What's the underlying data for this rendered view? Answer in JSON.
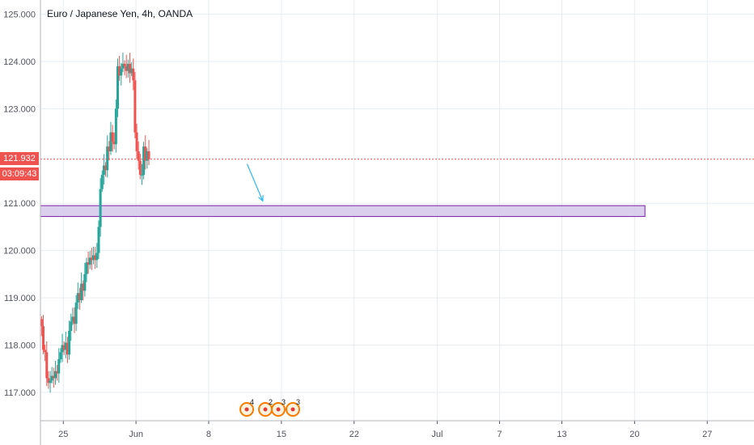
{
  "colors": {
    "up": "#26a69a",
    "down": "#ef5350",
    "grid": "#e6eef2",
    "axis_text": "#50535e",
    "zone_fill": "#d1c4e9",
    "zone_border": "#7b1fa2",
    "arrow": "#29b6f6"
  },
  "header": {
    "title": "Euro / Japanese Yen, 4h, OANDA"
  },
  "price_tag": {
    "price": "121.932",
    "countdown": "03:09:43"
  },
  "events": [
    {
      "label": "4",
      "icon": "flag-icon"
    },
    {
      "label": "2",
      "icon": "flag-icon"
    },
    {
      "label": "3",
      "icon": "flag-icon"
    },
    {
      "label": "3",
      "icon": "flag-icon"
    }
  ],
  "chart_data": {
    "type": "candlestick",
    "title": "Euro / Japanese Yen, 4h, OANDA",
    "y_ticks": [
      "125.000",
      "124.000",
      "123.000",
      "121.000",
      "120.000",
      "119.000",
      "118.000",
      "117.000"
    ],
    "y_range": [
      116.4,
      125.3
    ],
    "x_ticks": [
      {
        "label": "25",
        "day": 0
      },
      {
        "label": "Jun",
        "day": 7
      },
      {
        "label": "8",
        "day": 14
      },
      {
        "label": "15",
        "day": 21
      },
      {
        "label": "22",
        "day": 28
      },
      {
        "label": "Jul",
        "day": 36
      },
      {
        "label": "7",
        "day": 42
      },
      {
        "label": "13",
        "day": 48
      },
      {
        "label": "20",
        "day": 55
      },
      {
        "label": "27",
        "day": 62
      }
    ],
    "x_day_range": [
      -2.2,
      66.5
    ],
    "last_price": 121.932,
    "zone": {
      "low": 120.72,
      "high": 120.95,
      "from_day": -2.2,
      "to_day": 56.0
    },
    "projection": {
      "from_day": 17.7,
      "from_price": 121.83,
      "to_day": 19.2,
      "to_price": 121.05
    },
    "closes": [
      118.4,
      117.9,
      117.85,
      117.3,
      117.2,
      117.25,
      117.35,
      117.3,
      117.45,
      117.4,
      117.7,
      117.85,
      118.0,
      117.9,
      118.05,
      117.8,
      118.3,
      118.5,
      118.6,
      118.45,
      118.9,
      119.1,
      118.95,
      119.3,
      119.15,
      119.5,
      119.75,
      119.7,
      119.85,
      119.8,
      119.9,
      119.8,
      119.95,
      120.5,
      121.3,
      121.6,
      121.8,
      121.7,
      122.2,
      122.1,
      122.5,
      122.3,
      122.25,
      123.0,
      123.9,
      123.7,
      123.85,
      123.95,
      123.9,
      123.8,
      123.95,
      123.75,
      123.85,
      123.6,
      122.5,
      122.1,
      121.9,
      121.6,
      121.6,
      122.2,
      121.9,
      122.1,
      121.932
    ]
  }
}
